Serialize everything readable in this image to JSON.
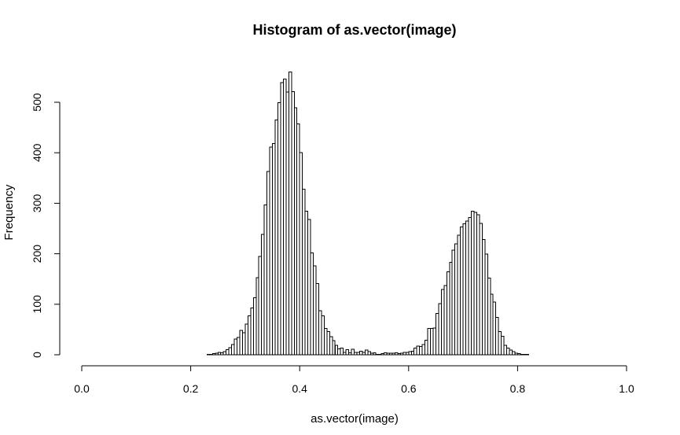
{
  "chart_data": {
    "type": "bar",
    "title": "Histogram of as.vector(image)",
    "xlabel": "as.vector(image)",
    "ylabel": "Frequency",
    "xlim": [
      0,
      1
    ],
    "ylim": [
      0,
      560
    ],
    "bin_width": 0.005,
    "x_ticks": [
      0.0,
      0.2,
      0.4,
      0.6,
      0.8,
      1.0
    ],
    "x_tick_labels": [
      "0.0",
      "0.2",
      "0.4",
      "0.6",
      "0.8",
      "1.0"
    ],
    "y_ticks": [
      0,
      100,
      200,
      300,
      400,
      500
    ],
    "y_tick_labels": [
      "0",
      "100",
      "200",
      "300",
      "400",
      "500"
    ],
    "grid": false,
    "values": [
      0,
      0,
      0,
      0,
      0,
      0,
      0,
      0,
      0,
      0,
      0,
      0,
      0,
      0,
      0,
      0,
      0,
      0,
      0,
      0,
      0,
      0,
      0,
      0,
      0,
      0,
      0,
      0,
      0,
      0,
      0,
      0,
      0,
      0,
      0,
      0,
      0,
      0,
      0,
      0,
      0,
      0,
      0,
      0,
      0,
      0,
      1,
      1,
      2,
      3,
      5,
      4,
      6,
      10,
      14,
      20,
      31,
      34,
      48,
      44,
      61,
      77,
      93,
      113,
      153,
      195,
      238,
      297,
      363,
      411,
      418,
      465,
      499,
      539,
      546,
      520,
      560,
      521,
      489,
      457,
      400,
      328,
      284,
      268,
      202,
      176,
      141,
      87,
      77,
      52,
      46,
      36,
      28,
      19,
      12,
      13,
      5,
      10,
      4,
      11,
      5,
      5,
      7,
      5,
      9,
      6,
      3,
      4,
      1,
      1,
      2,
      4,
      3,
      3,
      3,
      4,
      2,
      3,
      5,
      5,
      6,
      7,
      13,
      17,
      16,
      20,
      29,
      52,
      52,
      53,
      82,
      101,
      129,
      137,
      164,
      183,
      207,
      220,
      237,
      253,
      259,
      265,
      272,
      284,
      282,
      277,
      260,
      228,
      199,
      152,
      120,
      104,
      74,
      46,
      37,
      19,
      13,
      9,
      6,
      3,
      2,
      1,
      1,
      1,
      0,
      0,
      0,
      0,
      0,
      0,
      0,
      0,
      0,
      0,
      0,
      0,
      0,
      0,
      0,
      0,
      0,
      0,
      0,
      0,
      0,
      0,
      0,
      0,
      0,
      0,
      0,
      0,
      0,
      0,
      0,
      0,
      0,
      0,
      0,
      0,
      0,
      0,
      0,
      0,
      0,
      0,
      0,
      0,
      0,
      0,
      0,
      0,
      0,
      0,
      0,
      0,
      0,
      0,
      0
    ]
  }
}
